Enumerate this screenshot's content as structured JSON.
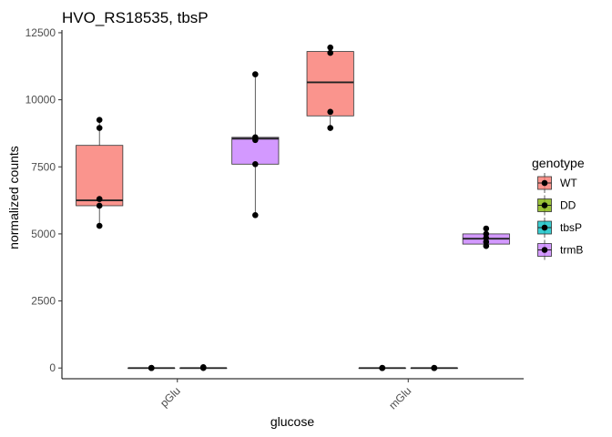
{
  "chart_data": {
    "type": "box",
    "title": "HVO_RS18535, tbsP",
    "xlabel": "glucose",
    "ylabel": "normalized counts",
    "categories": [
      "pGlu",
      "mGlu"
    ],
    "yticks": [
      0,
      2500,
      5000,
      7500,
      10000,
      12500
    ],
    "ytick_labels": [
      "0",
      "2500",
      "5000",
      "7500",
      "10000",
      "12500"
    ],
    "ylim": [
      -400,
      12600
    ],
    "legend": {
      "title": "genotype",
      "position": "right",
      "entries": [
        {
          "label": "WT",
          "color": "#F8766D"
        },
        {
          "label": "DD",
          "color": "#7CAE00"
        },
        {
          "label": "tbsP",
          "color": "#00BFC4"
        },
        {
          "label": "trmB",
          "color": "#C77CFF"
        }
      ]
    },
    "series": [
      {
        "name": "WT",
        "color": "#F8766D",
        "boxes": [
          {
            "category": "pGlu",
            "min": 5300,
            "q1": 6050,
            "median": 6250,
            "q3": 8300,
            "max": 9250,
            "points": [
              5300,
              6050,
              6300,
              8950,
              9250
            ]
          },
          {
            "category": "mGlu",
            "min": 8950,
            "q1": 9400,
            "median": 10650,
            "q3": 11800,
            "max": 11950,
            "points": [
              8950,
              9550,
              11750,
              11950
            ]
          }
        ]
      },
      {
        "name": "DD",
        "color": "#7CAE00",
        "boxes": [
          {
            "category": "pGlu",
            "min": 0,
            "q1": 0,
            "median": 0,
            "q3": 0,
            "max": 0,
            "points": [
              0,
              0,
              0,
              0
            ]
          },
          {
            "category": "mGlu",
            "min": 0,
            "q1": 0,
            "median": 0,
            "q3": 0,
            "max": 0,
            "points": [
              0,
              0,
              0,
              0
            ]
          }
        ]
      },
      {
        "name": "tbsP",
        "color": "#00BFC4",
        "boxes": [
          {
            "category": "pGlu",
            "min": 0,
            "q1": 0,
            "median": 0,
            "q3": 0,
            "max": 30,
            "points": [
              0,
              10,
              20,
              30
            ]
          },
          {
            "category": "mGlu",
            "min": 0,
            "q1": 0,
            "median": 0,
            "q3": 0,
            "max": 0,
            "points": [
              0,
              0,
              0,
              0
            ]
          }
        ]
      },
      {
        "name": "trmB",
        "color": "#C77CFF",
        "boxes": [
          {
            "category": "pGlu",
            "min": 5700,
            "q1": 7600,
            "median": 8550,
            "q3": 8600,
            "max": 10950,
            "points": [
              5700,
              7600,
              8500,
              8600,
              10950
            ]
          },
          {
            "category": "mGlu",
            "min": 4550,
            "q1": 4620,
            "median": 4820,
            "q3": 5000,
            "max": 5200,
            "points": [
              4550,
              4700,
              4850,
              5000,
              5200
            ]
          }
        ]
      }
    ]
  }
}
